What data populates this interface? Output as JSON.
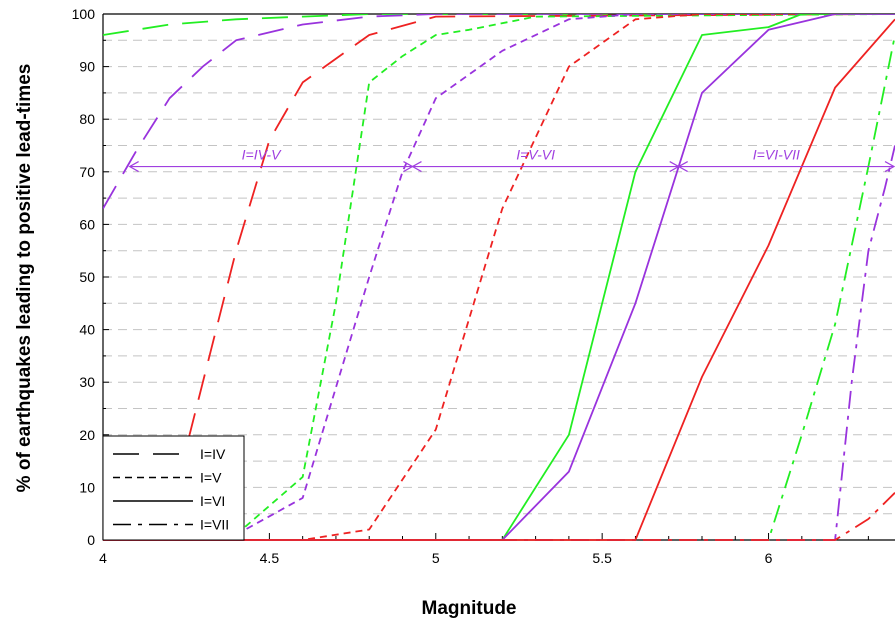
{
  "chart_data": {
    "type": "line",
    "xlabel": "Magnitude",
    "ylabel": "% of earthquakes leading to positive lead-times",
    "xlim": [
      4,
      6.38
    ],
    "ylim": [
      0,
      100
    ],
    "x_ticks": [
      "4",
      "4.5",
      "5",
      "5.5",
      "6"
    ],
    "y_ticks": [
      "0",
      "10",
      "20",
      "30",
      "40",
      "50",
      "60",
      "70",
      "80",
      "90",
      "100"
    ],
    "grid": "horizontal dashed every 5",
    "legend_position": "bottom-left",
    "legend": [
      {
        "label": "I=IV",
        "dash": "long-dash"
      },
      {
        "label": "I=V",
        "dash": "dash"
      },
      {
        "label": "I=VI",
        "dash": "solid"
      },
      {
        "label": "I=VII",
        "dash": "dash-dot"
      }
    ],
    "colors": {
      "green": "#22ee22",
      "purple": "#9933dd",
      "red": "#ee2222"
    },
    "band_annotations": [
      {
        "label": "I=IV-V",
        "x_start": 4.08,
        "x_end": 4.93,
        "y": 71
      },
      {
        "label": "I=V-VI",
        "x_start": 4.93,
        "x_end": 5.73,
        "y": 71
      },
      {
        "label": "I=VI-VII",
        "x_start": 5.73,
        "x_end": 6.38,
        "y": 71
      }
    ],
    "series": [
      {
        "intensity": "I=IV",
        "color": "green",
        "dash": "long-dash",
        "x": [
          4.0,
          4.1,
          4.2,
          4.4,
          4.6,
          4.8,
          5.0,
          6.38
        ],
        "y": [
          96,
          97,
          98,
          99,
          99.5,
          100,
          100,
          100
        ]
      },
      {
        "intensity": "I=IV",
        "color": "purple",
        "dash": "long-dash",
        "x": [
          4.0,
          4.1,
          4.2,
          4.3,
          4.4,
          4.6,
          4.8,
          5.0,
          6.38
        ],
        "y": [
          63,
          74,
          84,
          90,
          95,
          98,
          99.5,
          100,
          100
        ]
      },
      {
        "intensity": "I=IV",
        "color": "red",
        "dash": "long-dash",
        "x": [
          4.1,
          4.2,
          4.4,
          4.5,
          4.6,
          4.8,
          5.0,
          6.38
        ],
        "y": [
          0,
          5,
          55,
          76,
          87,
          96,
          99.5,
          100
        ]
      },
      {
        "intensity": "I=V",
        "color": "green",
        "dash": "dash",
        "x": [
          4.4,
          4.6,
          4.7,
          4.8,
          4.9,
          5.0,
          5.1,
          5.3,
          6.38
        ],
        "y": [
          1,
          12,
          45,
          87,
          92,
          96,
          97,
          99.5,
          100
        ]
      },
      {
        "intensity": "I=V",
        "color": "purple",
        "dash": "dash",
        "x": [
          4.4,
          4.6,
          4.8,
          4.9,
          5.0,
          5.2,
          5.4,
          5.6,
          6.38
        ],
        "y": [
          1,
          8,
          50,
          70,
          84,
          93,
          99,
          100,
          100
        ]
      },
      {
        "intensity": "I=V",
        "color": "red",
        "dash": "dash",
        "x": [
          4.4,
          4.6,
          4.8,
          5.0,
          5.2,
          5.4,
          5.6,
          5.8,
          6.38
        ],
        "y": [
          0,
          0,
          2,
          21,
          63,
          90,
          99,
          100,
          100
        ]
      },
      {
        "intensity": "I=VI",
        "color": "green",
        "dash": "solid",
        "x": [
          4.0,
          5.2,
          5.4,
          5.6,
          5.8,
          6.0,
          6.1,
          6.38
        ],
        "y": [
          0,
          0,
          20,
          70,
          96,
          97.5,
          100,
          100
        ]
      },
      {
        "intensity": "I=VI",
        "color": "purple",
        "dash": "solid",
        "x": [
          4.0,
          5.2,
          5.4,
          5.6,
          5.8,
          6.0,
          6.2,
          6.38
        ],
        "y": [
          0,
          0,
          13,
          45,
          85,
          97,
          100,
          100
        ]
      },
      {
        "intensity": "I=VI",
        "color": "red",
        "dash": "solid",
        "x": [
          4.0,
          5.6,
          5.8,
          6.0,
          6.2,
          6.38
        ],
        "y": [
          0,
          0,
          31,
          56,
          86,
          99
        ]
      },
      {
        "intensity": "I=VII",
        "color": "green",
        "dash": "dash-dot",
        "x": [
          4.0,
          6.0,
          6.1,
          6.2,
          6.3,
          6.38
        ],
        "y": [
          0,
          0,
          20,
          41,
          71,
          96
        ]
      },
      {
        "intensity": "I=VII",
        "color": "purple",
        "dash": "dash-dot",
        "x": [
          4.0,
          6.2,
          6.25,
          6.3,
          6.35,
          6.38
        ],
        "y": [
          0,
          0,
          30,
          55,
          67,
          75
        ]
      },
      {
        "intensity": "I=VII",
        "color": "red",
        "dash": "dash-dot",
        "x": [
          4.0,
          6.2,
          6.3,
          6.38
        ],
        "y": [
          0,
          0,
          4,
          9
        ]
      }
    ]
  }
}
